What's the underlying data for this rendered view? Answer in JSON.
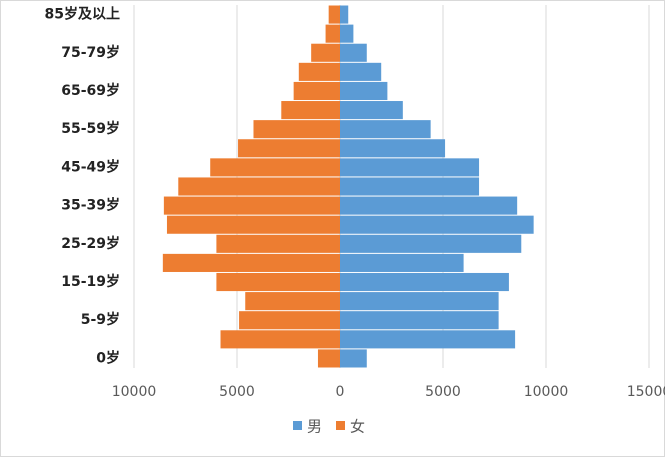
{
  "chart_data": {
    "type": "population-pyramid",
    "categories": [
      "0岁",
      null,
      "5-9岁",
      null,
      "15-19岁",
      null,
      "25-29岁",
      null,
      "35-39岁",
      null,
      "45-49岁",
      null,
      "55-59岁",
      null,
      "65-69岁",
      null,
      "75-79岁",
      null,
      "85岁及以上"
    ],
    "series": [
      {
        "name": "男",
        "color": "#5b9bd5",
        "values": [
          1300,
          8500,
          7700,
          7700,
          8200,
          6000,
          8800,
          9400,
          8600,
          6750,
          6750,
          5100,
          4400,
          3050,
          2300,
          2000,
          1300,
          650,
          400
        ]
      },
      {
        "name": "女",
        "color": "#ed7d31",
        "values": [
          -1070,
          -5800,
          -4900,
          -4600,
          -6000,
          -8600,
          -6000,
          -8400,
          -8550,
          -7850,
          -6300,
          -4950,
          -4200,
          -2850,
          -2250,
          -2000,
          -1400,
          -700,
          -550
        ]
      }
    ],
    "xlim": [
      -10000,
      15000
    ],
    "xticks": [
      {
        "value": -10000,
        "label": "10000"
      },
      {
        "value": -5000,
        "label": "5000"
      },
      0,
      5000,
      10000,
      15000
    ],
    "grid": true,
    "legend": "bottom"
  }
}
